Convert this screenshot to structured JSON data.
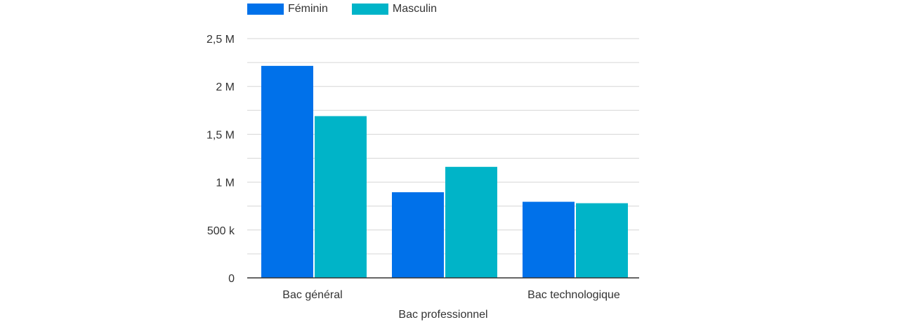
{
  "chart_data": {
    "type": "bar",
    "categories": [
      "Bac général",
      "Bac professionnel",
      "Bac technologique"
    ],
    "series": [
      {
        "name": "Féminin",
        "color": "#0071ea",
        "values": [
          2215000,
          895000,
          795000
        ]
      },
      {
        "name": "Masculin",
        "color": "#00b4c8",
        "values": [
          1690000,
          1160000,
          780000
        ]
      }
    ],
    "ylim": [
      0,
      2500000
    ],
    "y_ticks": [
      {
        "value": 0,
        "label": "0"
      },
      {
        "value": 500000,
        "label": "500 k"
      },
      {
        "value": 1000000,
        "label": "1 M"
      },
      {
        "value": 1500000,
        "label": "1,5 M"
      },
      {
        "value": 2000000,
        "label": "2 M"
      },
      {
        "value": 2500000,
        "label": "2,5 M"
      }
    ],
    "legend_position": "top-left",
    "grid": true,
    "title": "",
    "xlabel": "",
    "ylabel": ""
  }
}
